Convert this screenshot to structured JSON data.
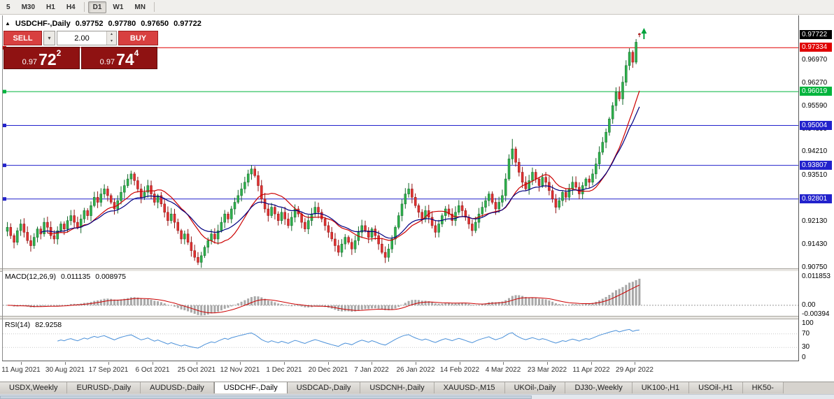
{
  "toolbar": {
    "timeframes": [
      "5",
      "M30",
      "H1",
      "H4",
      "D1",
      "W1",
      "MN"
    ],
    "active": "D1"
  },
  "icons": {
    "collapse_triangle": "▲",
    "chevron_down": "▾",
    "chevron_up": "▴"
  },
  "chart_header": {
    "symbol": "USDCHF-,Daily",
    "open": "0.97752",
    "high": "0.97780",
    "low": "0.97650",
    "close": "0.97722"
  },
  "trade_panel": {
    "sell_label": "SELL",
    "buy_label": "BUY",
    "volume": "2.00",
    "sell_price": {
      "prefix": "0.97",
      "big": "72",
      "sup": "2"
    },
    "buy_price": {
      "prefix": "0.97",
      "big": "74",
      "sup": "4"
    }
  },
  "price_axis": {
    "badges": [
      {
        "label": "0.97722",
        "price": 0.97722,
        "bg": "#000000"
      },
      {
        "label": "0.97334",
        "price": 0.97334,
        "bg": "#e00000"
      },
      {
        "label": "0.96019",
        "price": 0.96019,
        "bg": "#00b43c"
      },
      {
        "label": "0.95004",
        "price": 0.95004,
        "bg": "#2222cc"
      },
      {
        "label": "0.93807",
        "price": 0.93807,
        "bg": "#2222cc"
      },
      {
        "label": "0.92801",
        "price": 0.92801,
        "bg": "#2222cc"
      }
    ],
    "labels": [
      {
        "label": "0.96970",
        "price": 0.9697
      },
      {
        "label": "0.96270",
        "price": 0.9627
      },
      {
        "label": "0.95590",
        "price": 0.9559
      },
      {
        "label": "0.94890",
        "price": 0.9489
      },
      {
        "label": "0.94210",
        "price": 0.9421
      },
      {
        "label": "0.93510",
        "price": 0.9351
      },
      {
        "label": "0.92130",
        "price": 0.9213
      },
      {
        "label": "0.91430",
        "price": 0.9143
      },
      {
        "label": "0.90750",
        "price": 0.9075
      }
    ]
  },
  "hlines": [
    {
      "price": 0.97334,
      "color": "#e00000"
    },
    {
      "price": 0.96019,
      "color": "#00b43c"
    },
    {
      "price": 0.95004,
      "color": "#2222cc"
    },
    {
      "price": 0.93807,
      "color": "#2222cc"
    },
    {
      "price": 0.92801,
      "color": "#2222cc"
    }
  ],
  "macd_panel": {
    "title": "MACD(12,26,9)",
    "value_main": "0.011135",
    "value_signal": "0.008975",
    "axis": [
      {
        "label": "0.011853",
        "value": 0.011853
      },
      {
        "label": "0.00",
        "value": 0
      },
      {
        "label": "-0.00394",
        "value": -0.00394
      }
    ]
  },
  "rsi_panel": {
    "title": "RSI(14)",
    "value": "82.9258",
    "axis": [
      {
        "label": "100",
        "value": 100
      },
      {
        "label": "70",
        "value": 70
      },
      {
        "label": "30",
        "value": 30
      },
      {
        "label": "0",
        "value": 0
      }
    ],
    "levels": [
      70,
      30
    ]
  },
  "tabs": [
    {
      "label": "USDX,Weekly"
    },
    {
      "label": "EURUSD-,Daily"
    },
    {
      "label": "AUDUSD-,Daily"
    },
    {
      "label": "USDCHF-,Daily",
      "active": true
    },
    {
      "label": "USDCAD-,Daily"
    },
    {
      "label": "USDCNH-,Daily"
    },
    {
      "label": "XAUUSD-,M15"
    },
    {
      "label": "UKOil-,Daily"
    },
    {
      "label": "DJ30-,Weekly"
    },
    {
      "label": "UK100-,H1"
    },
    {
      "label": "USOil-,H1"
    },
    {
      "label": "HK50-"
    }
  ],
  "colors": {
    "up": "#2eb14c",
    "up_dark": "#14682b",
    "down": "#e03030",
    "down_dark": "#8f1414",
    "ma_fast": "#cc0000",
    "ma_slow": "#000080",
    "macd_hist": "#a8a8a8",
    "macd_signal": "#cc0000",
    "rsi_line": "#4a90d9",
    "arrow_green": "#00a23c"
  },
  "chart_data": {
    "type": "candlestick",
    "symbol": "USDCHF-",
    "timeframe": "Daily",
    "title": "USDCHF-,Daily",
    "ohlc_current": {
      "open": 0.97752,
      "high": 0.9778,
      "low": 0.9765,
      "close": 0.97722
    },
    "y_range": [
      0.9072,
      0.9822
    ],
    "x_tick_labels": [
      "11 Aug 2021",
      "30 Aug 2021",
      "17 Sep 2021",
      "6 Oct 2021",
      "25 Oct 2021",
      "12 Nov 2021",
      "1 Dec 2021",
      "20 Dec 2021",
      "7 Jan 2022",
      "26 Jan 2022",
      "14 Feb 2022",
      "4 Mar 2022",
      "23 Mar 2022",
      "11 Apr 2022",
      "29 Apr 2022"
    ],
    "horizontal_levels": [
      0.97334,
      0.96019,
      0.95004,
      0.93807,
      0.92801
    ],
    "candles": {
      "closes": [
        0.9195,
        0.917,
        0.915,
        0.9185,
        0.9205,
        0.918,
        0.9155,
        0.914,
        0.9165,
        0.919,
        0.9175,
        0.921,
        0.9195,
        0.917,
        0.916,
        0.9185,
        0.9205,
        0.919,
        0.9215,
        0.923,
        0.921,
        0.9195,
        0.922,
        0.9245,
        0.923,
        0.926,
        0.9285,
        0.927,
        0.9295,
        0.931,
        0.929,
        0.927,
        0.925,
        0.9275,
        0.93,
        0.932,
        0.934,
        0.9355,
        0.9335,
        0.931,
        0.9285,
        0.93,
        0.932,
        0.9295,
        0.927,
        0.929,
        0.9265,
        0.924,
        0.9215,
        0.9235,
        0.921,
        0.9185,
        0.916,
        0.9175,
        0.915,
        0.9125,
        0.9105,
        0.909,
        0.911,
        0.9135,
        0.9155,
        0.9175,
        0.916,
        0.9185,
        0.921,
        0.9235,
        0.922,
        0.925,
        0.927,
        0.929,
        0.931,
        0.933,
        0.9355,
        0.937,
        0.935,
        0.932,
        0.928,
        0.925,
        0.923,
        0.9255,
        0.9235,
        0.9215,
        0.924,
        0.922,
        0.92,
        0.9225,
        0.925,
        0.9235,
        0.921,
        0.919,
        0.9215,
        0.9235,
        0.9255,
        0.924,
        0.922,
        0.92,
        0.918,
        0.916,
        0.914,
        0.912,
        0.9145,
        0.9165,
        0.915,
        0.913,
        0.9155,
        0.918,
        0.92,
        0.9185,
        0.9165,
        0.919,
        0.917,
        0.9145,
        0.912,
        0.9105,
        0.913,
        0.916,
        0.9195,
        0.923,
        0.9265,
        0.9295,
        0.931,
        0.9285,
        0.926,
        0.924,
        0.922,
        0.9245,
        0.9225,
        0.92,
        0.918,
        0.9205,
        0.923,
        0.925,
        0.9235,
        0.9215,
        0.924,
        0.926,
        0.9245,
        0.9225,
        0.9205,
        0.9185,
        0.921,
        0.9235,
        0.9255,
        0.9275,
        0.9295,
        0.927,
        0.925,
        0.927,
        0.929,
        0.934,
        0.94,
        0.943,
        0.939,
        0.936,
        0.933,
        0.931,
        0.9335,
        0.936,
        0.934,
        0.932,
        0.9345,
        0.933,
        0.9305,
        0.928,
        0.9255,
        0.9275,
        0.93,
        0.9285,
        0.931,
        0.933,
        0.9315,
        0.9295,
        0.932,
        0.934,
        0.933,
        0.9355,
        0.9385,
        0.942,
        0.945,
        0.948,
        0.952,
        0.956,
        0.96,
        0.958,
        0.963,
        0.968,
        0.972,
        0.969,
        0.975,
        0.97722
      ],
      "overrides": {
        "57": {
          "l": 0.9082
        },
        "73": {
          "h": 0.9382
        },
        "151": {
          "h": 0.946
        },
        "189": {
          "o": 0.97752,
          "h": 0.9778,
          "l": 0.9765,
          "c": 0.97722
        }
      }
    },
    "indicators": {
      "ma_fast": {
        "type": "SMA",
        "period": 13,
        "color": "#cc0000"
      },
      "ma_slow": {
        "type": "EMA",
        "period": 20,
        "color": "#000080"
      },
      "macd": {
        "params": [
          12,
          26,
          9
        ],
        "current_main": 0.011135,
        "current_signal": 0.008975,
        "axis_max": 0.011853,
        "axis_min": -0.00394
      },
      "rsi": {
        "params": [
          14
        ],
        "current": 82.9258,
        "levels": [
          70,
          30
        ],
        "range": [
          0,
          100
        ]
      }
    }
  }
}
